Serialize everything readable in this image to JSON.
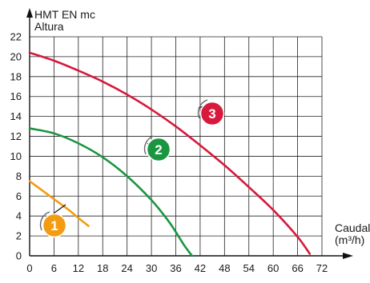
{
  "chart_data": {
    "type": "line",
    "ylabel_lines": [
      "HMT EN mc",
      "Altura"
    ],
    "xlabel_lines": [
      "Caudal",
      "(m³/h)"
    ],
    "xlim": [
      0,
      72
    ],
    "ylim": [
      0,
      22
    ],
    "xticks": [
      0,
      6,
      12,
      18,
      24,
      30,
      36,
      42,
      48,
      54,
      60,
      66,
      72
    ],
    "yticks": [
      0,
      2,
      4,
      6,
      8,
      10,
      12,
      14,
      16,
      18,
      20,
      22
    ],
    "grid": true,
    "series": [
      {
        "name": "1",
        "color": "#f39c12",
        "x": [
          0,
          2,
          4,
          6,
          8,
          10,
          12,
          14.5
        ],
        "y": [
          7.5,
          6.9,
          6.3,
          5.7,
          5.1,
          4.5,
          3.8,
          3.0
        ]
      },
      {
        "name": "2",
        "color": "#1a9641",
        "x": [
          0,
          6,
          12,
          18,
          24,
          30,
          34,
          36,
          38,
          40
        ],
        "y": [
          12.8,
          12.3,
          11.3,
          9.9,
          8.0,
          5.6,
          3.6,
          2.4,
          1.1,
          0
        ]
      },
      {
        "name": "3",
        "color": "#d7193c",
        "x": [
          0,
          6,
          12,
          18,
          24,
          30,
          36,
          42,
          48,
          54,
          60,
          66,
          69
        ],
        "y": [
          20.4,
          19.6,
          18.6,
          17.5,
          16.2,
          14.7,
          13.0,
          11.1,
          9.1,
          6.9,
          4.6,
          1.9,
          0.2
        ]
      }
    ]
  }
}
